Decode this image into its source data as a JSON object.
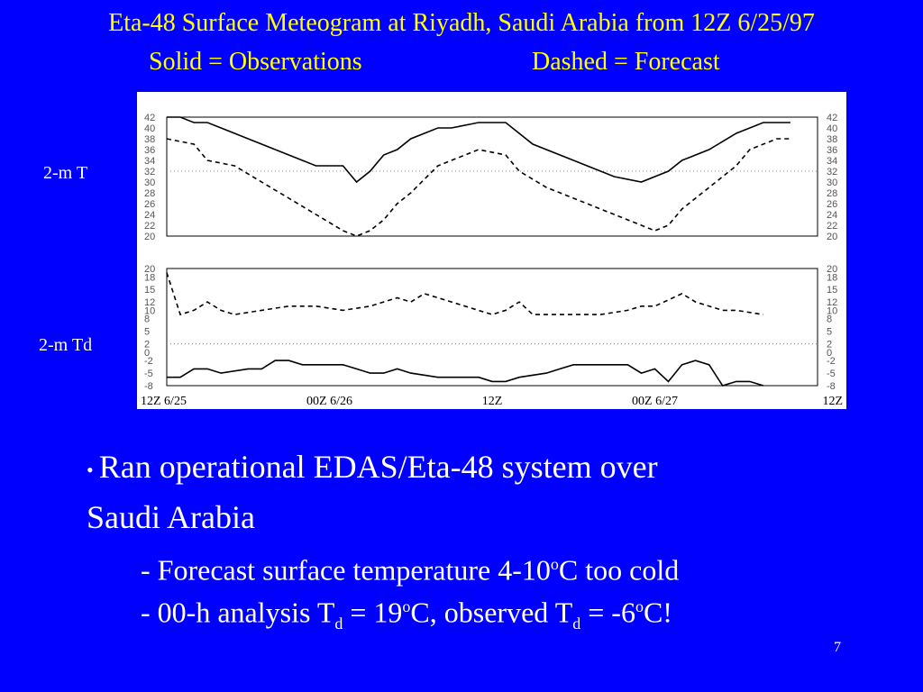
{
  "title": "Eta-48 Surface Meteogram at Riyadh, Saudi Arabia from 12Z 6/25/97",
  "legend": {
    "solid": "Solid = Observations",
    "dashed": "Dashed = Forecast"
  },
  "panel_labels": {
    "temperature": "2-m T",
    "dewpoint": "2-m Td"
  },
  "bullets": {
    "main": "Ran operational EDAS/Eta-48 system over Saudi Arabia",
    "main_line1": "Ran operational EDAS/Eta-48 system over",
    "main_line2": "Saudi Arabia",
    "sub1_a": "- Forecast surface temperature 4-10",
    "sub1_sup": "o",
    "sub1_b": "C too cold",
    "sub2_a": "- 00-h analysis T",
    "sub2_sub1": "d",
    "sub2_b": " = 19",
    "sub2_sup1": "o",
    "sub2_c": "C, observed T",
    "sub2_sub2": "d",
    "sub2_d": " = -6",
    "sub2_sup2": "o",
    "sub2_e": "C!"
  },
  "page_number": "7",
  "colors": {
    "background": "#0000ff",
    "title": "#ffff00",
    "text": "#ffffff",
    "plot_bg": "#ffffff",
    "line": "#000000"
  },
  "chart_data": [
    {
      "type": "line",
      "panel": "2-m T",
      "title": "",
      "xlabel": "",
      "ylabel": "",
      "x_hours": [
        0,
        3,
        6,
        9,
        12,
        15,
        18,
        21,
        24,
        27,
        30,
        33,
        36,
        39,
        42,
        45,
        48
      ],
      "x_tick_labels": [
        "12Z 6/25",
        "00Z 6/26",
        "12Z",
        "00Z 6/27",
        "12Z"
      ],
      "x_tick_hours": [
        0,
        12,
        24,
        36,
        48
      ],
      "ylim": [
        20,
        42
      ],
      "y_ticks": [
        20,
        22,
        24,
        26,
        28,
        30,
        32,
        34,
        36,
        38,
        40,
        42
      ],
      "series": [
        {
          "name": "Solid = Observations",
          "style": "solid",
          "points": [
            [
              0,
              42
            ],
            [
              1,
              42
            ],
            [
              2,
              41
            ],
            [
              3,
              41
            ],
            [
              6,
              38
            ],
            [
              9,
              35
            ],
            [
              11,
              33
            ],
            [
              13,
              33
            ],
            [
              14,
              30
            ],
            [
              15,
              32
            ],
            [
              16,
              35
            ],
            [
              17,
              36
            ],
            [
              18,
              38
            ],
            [
              20,
              40
            ],
            [
              21,
              40
            ],
            [
              23,
              41
            ],
            [
              25,
              41
            ],
            [
              27,
              37
            ],
            [
              30,
              34
            ],
            [
              33,
              31
            ],
            [
              35,
              30
            ],
            [
              37,
              32
            ],
            [
              38,
              34
            ],
            [
              40,
              36
            ],
            [
              42,
              39
            ],
            [
              44,
              41
            ],
            [
              46,
              41
            ]
          ]
        },
        {
          "name": "Dashed = Forecast",
          "style": "dashed",
          "points": [
            [
              0,
              38
            ],
            [
              2,
              37
            ],
            [
              3,
              34
            ],
            [
              5,
              33
            ],
            [
              7,
              30
            ],
            [
              9,
              27
            ],
            [
              11,
              24
            ],
            [
              13,
              21
            ],
            [
              14,
              20
            ],
            [
              15,
              21
            ],
            [
              16,
              23
            ],
            [
              17,
              26
            ],
            [
              18,
              28
            ],
            [
              20,
              33
            ],
            [
              22,
              35
            ],
            [
              23,
              36
            ],
            [
              25,
              35
            ],
            [
              26,
              32
            ],
            [
              28,
              29
            ],
            [
              30,
              27
            ],
            [
              32,
              25
            ],
            [
              34,
              23
            ],
            [
              36,
              21
            ],
            [
              37,
              22
            ],
            [
              38,
              25
            ],
            [
              40,
              29
            ],
            [
              42,
              33
            ],
            [
              43,
              36
            ],
            [
              45,
              38
            ],
            [
              46,
              38
            ]
          ]
        }
      ]
    },
    {
      "type": "line",
      "panel": "2-m Td",
      "title": "",
      "xlabel": "",
      "ylabel": "",
      "ylim": [
        -8,
        20
      ],
      "y_ticks": [
        -8,
        -5,
        -2,
        0,
        2,
        5,
        8,
        10,
        12,
        15,
        18,
        20
      ],
      "series": [
        {
          "name": "Solid = Observations",
          "style": "solid",
          "points": [
            [
              0,
              -6
            ],
            [
              1,
              -6
            ],
            [
              2,
              -4
            ],
            [
              3,
              -4
            ],
            [
              4,
              -5
            ],
            [
              6,
              -4
            ],
            [
              7,
              -4
            ],
            [
              8,
              -2
            ],
            [
              9,
              -2
            ],
            [
              10,
              -3
            ],
            [
              11,
              -3
            ],
            [
              13,
              -3
            ],
            [
              14,
              -4
            ],
            [
              15,
              -5
            ],
            [
              16,
              -5
            ],
            [
              17,
              -4
            ],
            [
              18,
              -5
            ],
            [
              20,
              -6
            ],
            [
              21,
              -6
            ],
            [
              23,
              -6
            ],
            [
              24,
              -7
            ],
            [
              25,
              -7
            ],
            [
              26,
              -6
            ],
            [
              28,
              -5
            ],
            [
              29,
              -4
            ],
            [
              30,
              -3
            ],
            [
              33,
              -3
            ],
            [
              34,
              -3
            ],
            [
              35,
              -5
            ],
            [
              36,
              -4
            ],
            [
              37,
              -7
            ],
            [
              38,
              -3
            ],
            [
              39,
              -2
            ],
            [
              40,
              -3
            ],
            [
              41,
              -8
            ],
            [
              42,
              -7
            ],
            [
              43,
              -7
            ],
            [
              44,
              -8
            ]
          ]
        },
        {
          "name": "Dashed = Forecast",
          "style": "dashed",
          "points": [
            [
              0,
              19
            ],
            [
              1,
              9
            ],
            [
              2,
              10
            ],
            [
              3,
              12
            ],
            [
              4,
              10
            ],
            [
              5,
              9
            ],
            [
              7,
              10
            ],
            [
              9,
              11
            ],
            [
              11,
              11
            ],
            [
              13,
              10
            ],
            [
              15,
              11
            ],
            [
              16,
              12
            ],
            [
              17,
              13
            ],
            [
              18,
              12
            ],
            [
              19,
              14
            ],
            [
              20,
              13
            ],
            [
              21,
              12
            ],
            [
              22,
              11
            ],
            [
              24,
              9
            ],
            [
              25,
              10
            ],
            [
              26,
              12
            ],
            [
              27,
              9
            ],
            [
              28,
              9
            ],
            [
              30,
              9
            ],
            [
              32,
              9
            ],
            [
              34,
              10
            ],
            [
              35,
              11
            ],
            [
              36,
              11
            ],
            [
              38,
              14
            ],
            [
              39,
              12
            ],
            [
              41,
              10
            ],
            [
              42,
              10
            ],
            [
              44,
              9
            ]
          ]
        }
      ]
    }
  ]
}
